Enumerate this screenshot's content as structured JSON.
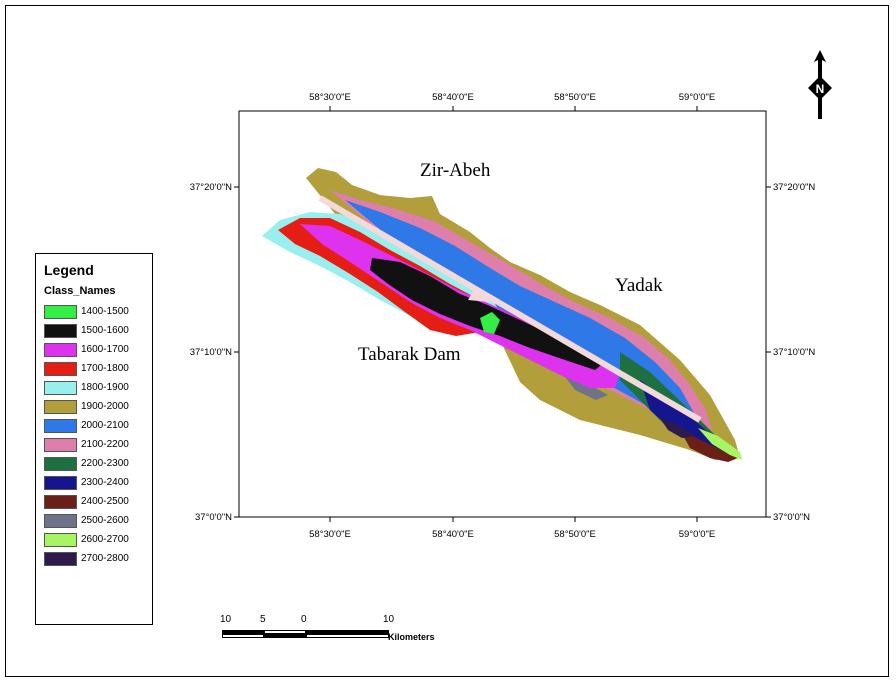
{
  "map": {
    "lon_ticks": [
      "58°30'0\"E",
      "58°40'0\"E",
      "58°50'0\"E",
      "59°0'0\"E"
    ],
    "lat_ticks": [
      "37°20'0\"N",
      "37°10'0\"N",
      "37°0'0\"N"
    ],
    "places": {
      "zir_abeh": "Zir-Abeh",
      "yadak": "Yadak",
      "tabarak_dam": "Tabarak Dam"
    },
    "north_letter": "N"
  },
  "legend": {
    "title": "Legend",
    "subtitle": "Class_Names",
    "items": [
      {
        "label": "1400-1500",
        "color": "#33ee44"
      },
      {
        "label": "1500-1600",
        "color": "#111111"
      },
      {
        "label": "1600-1700",
        "color": "#dd33ee"
      },
      {
        "label": "1700-1800",
        "color": "#e41e14"
      },
      {
        "label": "1800-1900",
        "color": "#99eeee"
      },
      {
        "label": "1900-2000",
        "color": "#b39e3c"
      },
      {
        "label": "2000-2100",
        "color": "#2f78e8"
      },
      {
        "label": "2100-2200",
        "color": "#dd7faa"
      },
      {
        "label": "2200-2300",
        "color": "#1f7040"
      },
      {
        "label": "2300-2400",
        "color": "#15168e"
      },
      {
        "label": "2400-2500",
        "color": "#6a1f18"
      },
      {
        "label": "2500-2600",
        "color": "#6f7289"
      },
      {
        "label": "2600-2700",
        "color": "#a8f563"
      },
      {
        "label": "2700-2800",
        "color": "#2e1a4c"
      }
    ]
  },
  "scalebar": {
    "labels": [
      "10",
      "5",
      "0",
      "10"
    ],
    "unit": "Kilometers"
  }
}
